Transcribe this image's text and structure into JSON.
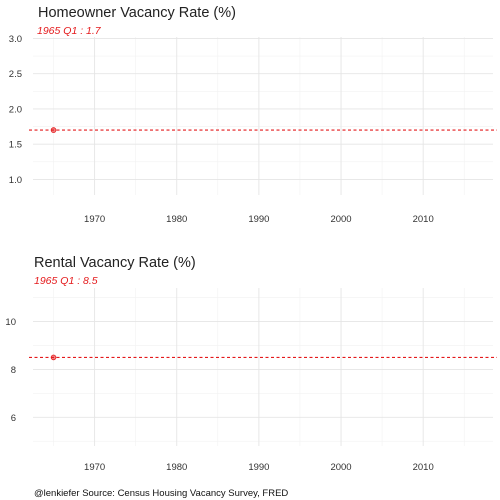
{
  "chart_data": [
    {
      "type": "line",
      "title": "Homeowner Vacancy Rate (%)",
      "subtitle": "1965 Q1 : 1.7",
      "xlabel": "",
      "ylabel": "",
      "x_ticks": [
        "1970",
        "1980",
        "1990",
        "2000",
        "2010"
      ],
      "y_ticks": [
        "1.0",
        "1.5",
        "2.0",
        "2.5",
        "3.0"
      ],
      "xlim": [
        1962.5,
        2018.5
      ],
      "ylim": [
        0.78,
        3.02
      ],
      "grid": true,
      "series": [
        {
          "x": [
            "1965 Q1"
          ],
          "y": [
            1.7
          ]
        }
      ],
      "reference_line": {
        "y": 1.7,
        "style": "dashed"
      },
      "color": "#e41a1c"
    },
    {
      "type": "line",
      "title": "Rental Vacancy Rate (%)",
      "subtitle": "1965 Q1 : 8.5",
      "xlabel": "",
      "ylabel": "",
      "x_ticks": [
        "1970",
        "1980",
        "1990",
        "2000",
        "2010"
      ],
      "y_ticks": [
        "6",
        "8",
        "10"
      ],
      "xlim": [
        1962.5,
        2018.5
      ],
      "ylim": [
        4.8,
        11.4
      ],
      "grid": true,
      "series": [
        {
          "x": [
            "1965 Q1"
          ],
          "y": [
            8.5
          ]
        }
      ],
      "reference_line": {
        "y": 8.5,
        "style": "dashed"
      },
      "color": "#e41a1c"
    }
  ],
  "caption": "@lenkiefer Source: Census Housing Vacancy Survey, FRED"
}
